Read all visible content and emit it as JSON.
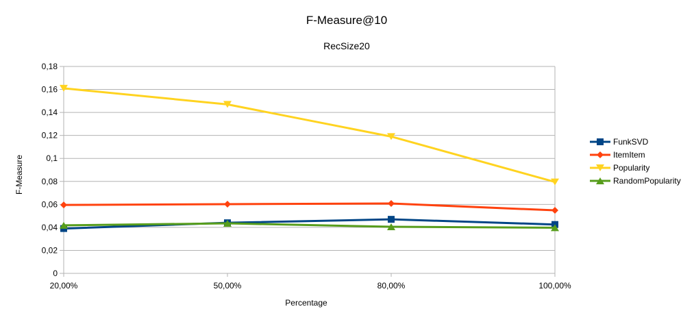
{
  "chart_data": {
    "type": "line",
    "title": "F-Measure@10",
    "subtitle": "RecSize20",
    "xlabel": "Percentage",
    "ylabel": "F-Measure",
    "categories": [
      "20,00%",
      "50,00%",
      "80,00%",
      "100,00%"
    ],
    "y_ticks": [
      "0",
      "0,02",
      "0,04",
      "0,06",
      "0,08",
      "0,1",
      "0,12",
      "0,14",
      "0,16",
      "0,18"
    ],
    "ylim": [
      0,
      0.18
    ],
    "grid": true,
    "legend_position": "right",
    "series": [
      {
        "name": "FunkSVD",
        "color": "#004586",
        "marker": "square",
        "values": [
          0.039,
          0.044,
          0.047,
          0.0425
        ]
      },
      {
        "name": "ItemItem",
        "color": "#ff420e",
        "marker": "diamond",
        "values": [
          0.0595,
          0.0602,
          0.0608,
          0.0548
        ]
      },
      {
        "name": "Popularity",
        "color": "#ffd320",
        "marker": "triangle-down",
        "values": [
          0.161,
          0.147,
          0.119,
          0.0795
        ]
      },
      {
        "name": "RandomPopularity",
        "color": "#579d1c",
        "marker": "triangle-up",
        "values": [
          0.0418,
          0.0435,
          0.0405,
          0.0397
        ]
      }
    ]
  }
}
